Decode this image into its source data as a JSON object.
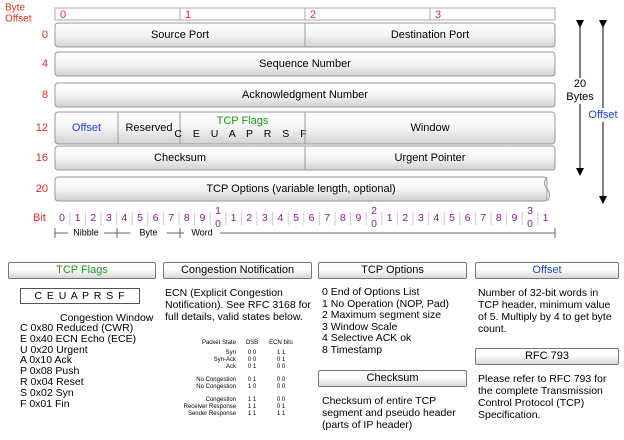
{
  "header_diagram": {
    "byte_offset_label": [
      "Byte",
      "Offset"
    ],
    "bit_header": [
      "0",
      "1",
      "2",
      "3"
    ],
    "rows": [
      {
        "offset": "0",
        "fields": [
          "Source Port",
          "Destination Port"
        ]
      },
      {
        "offset": "4",
        "fields": [
          "Sequence Number"
        ]
      },
      {
        "offset": "8",
        "fields": [
          "Acknowledgment Number"
        ]
      },
      {
        "offset": "12",
        "fields": [
          "Offset",
          "Reserved",
          "TCP Flags",
          "Window"
        ],
        "flags": "C E U A P R S F"
      },
      {
        "offset": "16",
        "fields": [
          "Checksum",
          "Urgent Pointer"
        ]
      },
      {
        "offset": "20",
        "fields": [
          "TCP Options (variable length, optional)"
        ]
      }
    ],
    "size_labels": {
      "bytes": [
        "20",
        "Bytes"
      ],
      "offset": "Offset"
    },
    "bit_label": "Bit",
    "bits": [
      "0",
      "1",
      "2",
      "3",
      "4",
      "5",
      "6",
      "7",
      "8",
      "9",
      "0",
      "1",
      "2",
      "3",
      "4",
      "5",
      "6",
      "7",
      "8",
      "9",
      "0",
      "1",
      "2",
      "3",
      "4",
      "5",
      "6",
      "7",
      "8",
      "9",
      "0",
      "1"
    ],
    "bit_tens": [
      "1",
      "2",
      "3"
    ],
    "groupings": [
      "Nibble",
      "Byte",
      "Word"
    ]
  },
  "panels": {
    "tcp_flags": {
      "title": "TCP Flags",
      "flags": "C E U A P R S F",
      "subtitle": "Congestion Window",
      "items": [
        "C 0x80 Reduced (CWR)",
        "E 0x40 ECN Echo (ECE)",
        "U 0x20 Urgent",
        "A 0x10 Ack",
        "P 0x08 Push",
        "R 0x04 Reset",
        "S 0x02 Syn",
        "F 0x01 Fin"
      ]
    },
    "congestion_notification": {
      "title": "Congestion Notification",
      "text": "ECN (Explicit Congestion Notification).  See RFC 3168 for full details, valid states below.",
      "table": {
        "headers": [
          "Packet State",
          "DSB",
          "ECN bits"
        ],
        "rows": [
          [
            "Syn",
            "0 0",
            "1 1"
          ],
          [
            "Syn-Ack",
            "0 0",
            "0 1"
          ],
          [
            "Ack",
            "0 1",
            "0 0"
          ],
          [
            "No Congestion",
            "0 1",
            "0 0"
          ],
          [
            "No Congestion",
            "1 0",
            "0 0"
          ],
          [
            "Congestion",
            "1 1",
            "0 0"
          ],
          [
            "Receiver Response",
            "1 1",
            "0 1"
          ],
          [
            "Sender Response",
            "1 1",
            "1 1"
          ]
        ]
      }
    },
    "tcp_options": {
      "title": "TCP Options",
      "items": [
        "0 End of Options List",
        "1 No Operation (NOP, Pad)",
        "2 Maximum segment size",
        "3 Window Scale",
        "4 Selective ACK ok",
        "8 Timestamp"
      ]
    },
    "checksum": {
      "title": "Checksum",
      "text": "Checksum of entire TCP segment and pseudo header (parts of IP header)"
    },
    "offset": {
      "title": "Offset",
      "text": "Number of 32-bit words in TCP header, minimum value of 5.  Multiply by 4 to get byte count."
    },
    "rfc": {
      "title": "RFC 793",
      "text": "Please refer to RFC 793 for the complete Transmission Control Protocol (TCP) Specification."
    }
  }
}
